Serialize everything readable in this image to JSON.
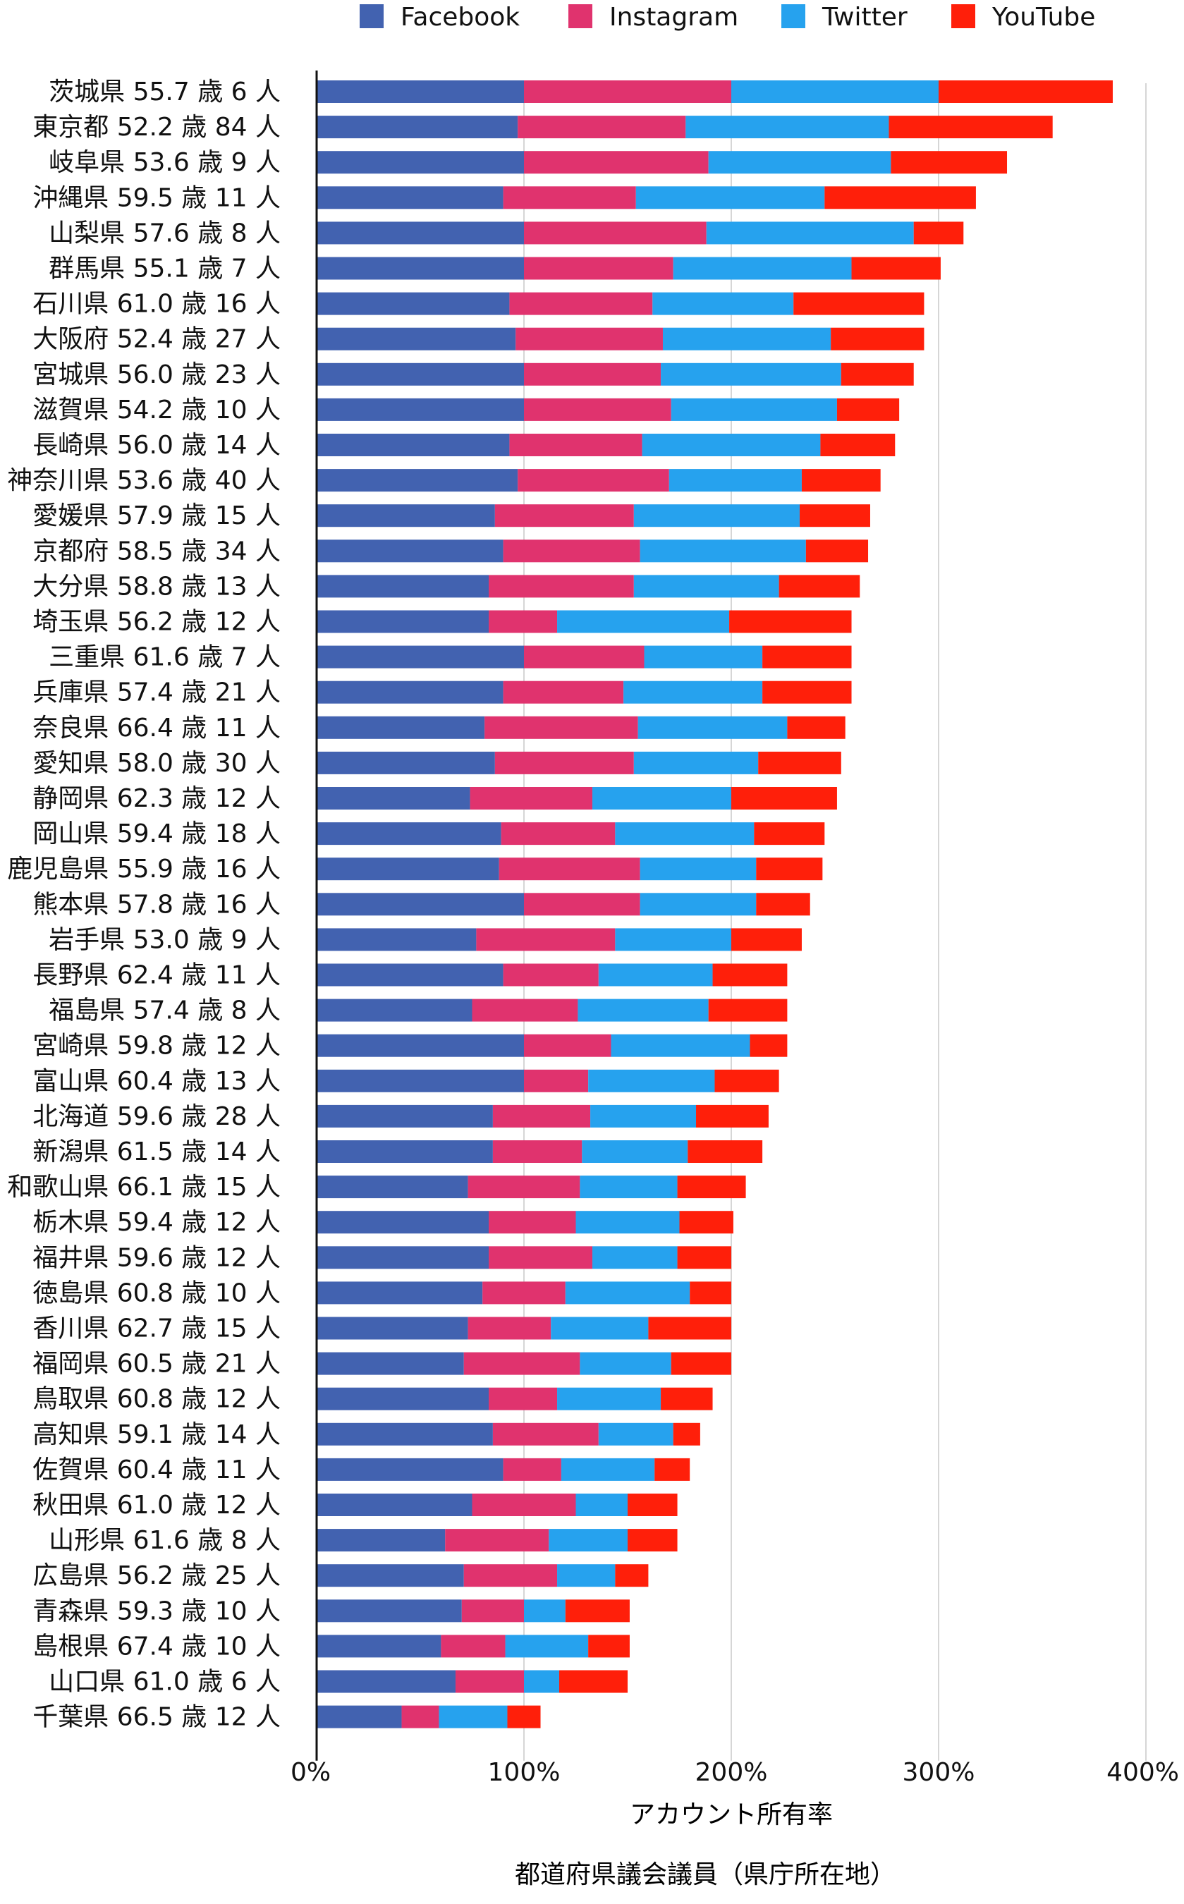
{
  "chart_data": {
    "type": "bar",
    "stacked": true,
    "orientation": "horizontal",
    "xlabel": "アカウント所有率",
    "caption": "都道府県議会議員（県庁所在地）",
    "xlim": [
      0,
      400
    ],
    "xticks": [
      "0%",
      "100%",
      "200%",
      "300%",
      "400%"
    ],
    "grid": true,
    "legend_position": "top",
    "categories": [
      "茨城県 55.7 歳 6 人",
      "東京都 52.2 歳 84 人",
      "岐阜県 53.6 歳 9 人",
      "沖縄県 59.5 歳 11 人",
      "山梨県 57.6 歳 8 人",
      "群馬県 55.1 歳 7 人",
      "石川県 61.0 歳 16 人",
      "大阪府 52.4 歳 27 人",
      "宮城県 56.0 歳 23 人",
      "滋賀県 54.2 歳 10 人",
      "長崎県 56.0 歳 14 人",
      "神奈川県 53.6 歳 40 人",
      "愛媛県 57.9 歳 15 人",
      "京都府 58.5 歳 34 人",
      "大分県 58.8 歳 13 人",
      "埼玉県 56.2 歳 12 人",
      "三重県 61.6 歳 7 人",
      "兵庫県 57.4 歳 21 人",
      "奈良県 66.4 歳 11 人",
      "愛知県 58.0 歳 30 人",
      "静岡県 62.3 歳 12 人",
      "岡山県 59.4 歳 18 人",
      "鹿児島県 55.9 歳 16 人",
      "熊本県 57.8 歳 16 人",
      "岩手県 53.0 歳 9 人",
      "長野県 62.4 歳 11 人",
      "福島県 57.4 歳 8 人",
      "宮崎県 59.8 歳 12 人",
      "富山県 60.4 歳 13 人",
      "北海道 59.6 歳 28 人",
      "新潟県 61.5 歳 14 人",
      "和歌山県 66.1 歳 15 人",
      "栃木県 59.4 歳 12 人",
      "福井県 59.6 歳 12 人",
      "徳島県 60.8 歳 10 人",
      "香川県 62.7 歳 15 人",
      "福岡県 60.5 歳 21 人",
      "鳥取県 60.8 歳 12 人",
      "高知県 59.1 歳 14 人",
      "佐賀県 60.4 歳 11 人",
      "秋田県 61.0 歳 12 人",
      "山形県 61.6 歳 8 人",
      "広島県 56.2 歳 25 人",
      "青森県 59.3 歳 10 人",
      "島根県 67.4 歳 10 人",
      "山口県 61.0 歳 6 人",
      "千葉県 66.5 歳 12 人"
    ],
    "series": [
      {
        "name": "Facebook",
        "color": "#4262b0",
        "values": [
          100,
          97,
          100,
          90,
          100,
          100,
          93,
          96,
          100,
          100,
          93,
          97,
          86,
          90,
          83,
          83,
          100,
          90,
          81,
          86,
          74,
          89,
          88,
          100,
          77,
          90,
          75,
          100,
          100,
          85,
          85,
          73,
          83,
          83,
          80,
          73,
          71,
          83,
          85,
          90,
          75,
          62,
          71,
          70,
          60,
          67,
          41
        ]
      },
      {
        "name": "Instagram",
        "color": "#e0336e",
        "values": [
          100,
          81,
          89,
          64,
          88,
          72,
          69,
          71,
          66,
          71,
          64,
          73,
          67,
          66,
          70,
          33,
          58,
          58,
          74,
          67,
          59,
          55,
          68,
          56,
          67,
          46,
          51,
          42,
          31,
          47,
          43,
          54,
          42,
          50,
          40,
          40,
          56,
          33,
          51,
          28,
          50,
          50,
          45,
          30,
          31,
          33,
          18
        ]
      },
      {
        "name": "Twitter",
        "color": "#26a2ee",
        "values": [
          100,
          98,
          88,
          91,
          100,
          86,
          68,
          81,
          87,
          80,
          86,
          64,
          80,
          80,
          70,
          83,
          57,
          67,
          72,
          60,
          67,
          67,
          56,
          56,
          56,
          55,
          63,
          67,
          61,
          51,
          51,
          47,
          50,
          41,
          60,
          47,
          44,
          50,
          36,
          45,
          25,
          38,
          28,
          20,
          40,
          17,
          33
        ]
      },
      {
        "name": "YouTube",
        "color": "#ff1f0a",
        "values": [
          84,
          79,
          56,
          73,
          24,
          43,
          63,
          45,
          35,
          30,
          36,
          38,
          34,
          30,
          39,
          59,
          43,
          43,
          28,
          40,
          51,
          34,
          32,
          26,
          34,
          36,
          38,
          18,
          31,
          35,
          36,
          33,
          26,
          26,
          20,
          40,
          29,
          25,
          13,
          17,
          24,
          24,
          16,
          31,
          20,
          33,
          16
        ]
      }
    ]
  }
}
